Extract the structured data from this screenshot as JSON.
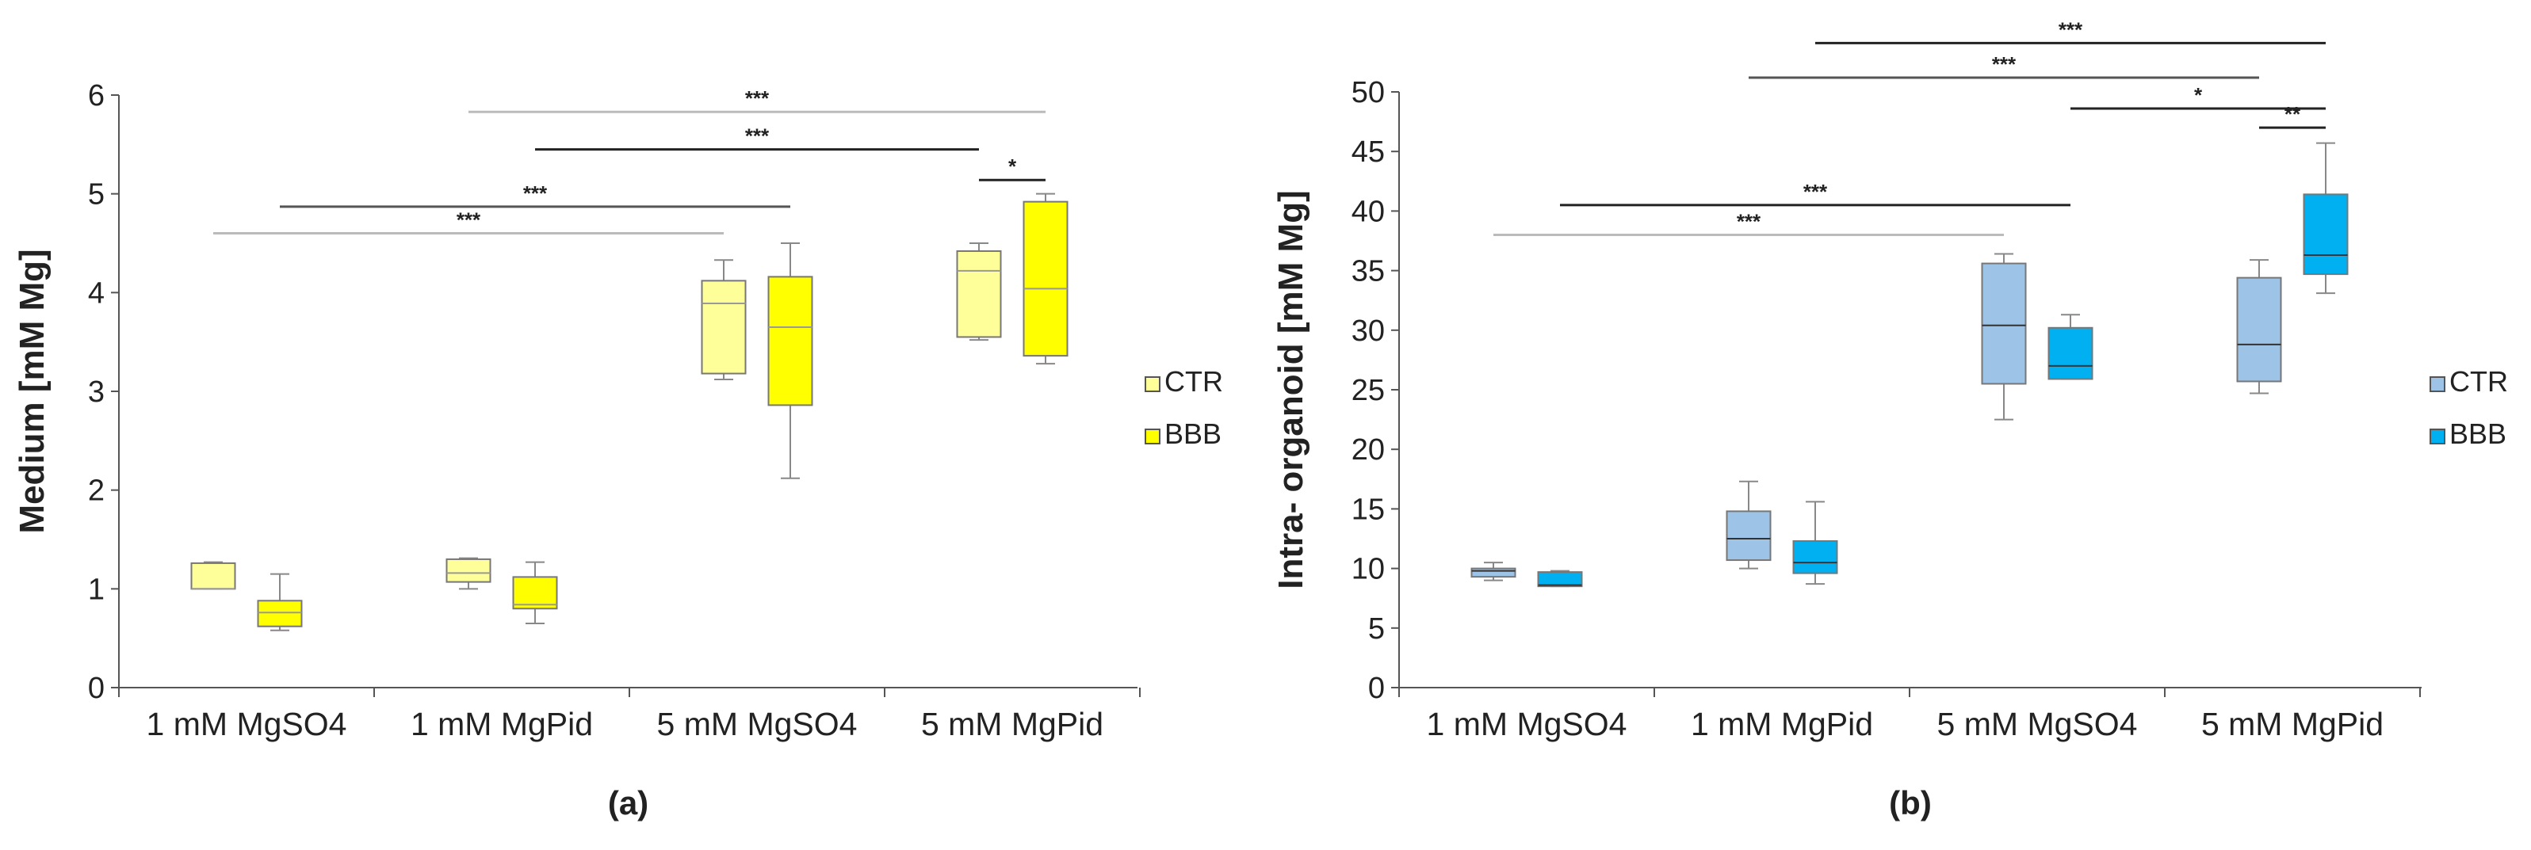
{
  "chart_data": [
    {
      "type": "box",
      "panel_label": "(a)",
      "ylabel": "Medium [mM Mg]",
      "ylim": [
        0,
        6
      ],
      "yticks": [
        "0",
        "1",
        "2",
        "3",
        "4",
        "5",
        "6"
      ],
      "categories": [
        "1 mM MgSO4",
        "1 mM MgPid",
        "5 mM MgSO4",
        "5 mM MgPid"
      ],
      "legend": {
        "position": "right",
        "entries": [
          "CTR",
          "BBB"
        ]
      },
      "series": [
        {
          "name": "CTR",
          "color": "#ffff99",
          "boxes": [
            {
              "min": 1.0,
              "q1": 1.0,
              "median": 1.0,
              "q3": 1.26,
              "max": 1.27
            },
            {
              "min": 1.0,
              "q1": 1.07,
              "median": 1.16,
              "q3": 1.3,
              "max": 1.31
            },
            {
              "min": 3.12,
              "q1": 3.18,
              "median": 3.89,
              "q3": 4.12,
              "max": 4.33
            },
            {
              "min": 3.52,
              "q1": 3.55,
              "median": 4.22,
              "q3": 4.42,
              "max": 4.5
            }
          ]
        },
        {
          "name": "BBB",
          "color": "#ffff00",
          "boxes": [
            {
              "min": 0.58,
              "q1": 0.62,
              "median": 0.76,
              "q3": 0.88,
              "max": 1.15
            },
            {
              "min": 0.65,
              "q1": 0.8,
              "median": 0.84,
              "q3": 1.12,
              "max": 1.27
            },
            {
              "min": 2.12,
              "q1": 2.86,
              "median": 3.65,
              "q3": 4.16,
              "max": 4.5
            },
            {
              "min": 3.28,
              "q1": 3.36,
              "median": 4.04,
              "q3": 4.92,
              "max": 5.0
            }
          ]
        }
      ],
      "significance": [
        {
          "from": [
            0,
            "CTR"
          ],
          "to": [
            2,
            "CTR"
          ],
          "y": 4.6,
          "label": "***",
          "color": "#bbbbbb"
        },
        {
          "from": [
            0,
            "BBB"
          ],
          "to": [
            2,
            "BBB"
          ],
          "y": 4.87,
          "label": "***",
          "color": "#555555"
        },
        {
          "from": [
            1,
            "BBB"
          ],
          "to": [
            3,
            "CTR"
          ],
          "y": 5.45,
          "label": "***",
          "color": "#222222"
        },
        {
          "from": [
            1,
            "CTR"
          ],
          "to": [
            3,
            "BBB"
          ],
          "y": 5.83,
          "label": "***",
          "color": "#bbbbbb"
        },
        {
          "from": [
            3,
            "CTR"
          ],
          "to": [
            3,
            "BBB"
          ],
          "y": 5.14,
          "label": "*",
          "color": "#222222"
        }
      ]
    },
    {
      "type": "box",
      "panel_label": "(b)",
      "ylabel": "Intra- organoid [mM Mg]",
      "ylim": [
        0,
        50
      ],
      "yticks": [
        "0",
        "5",
        "10",
        "15",
        "20",
        "25",
        "30",
        "35",
        "40",
        "45",
        "50"
      ],
      "categories": [
        "1 mM MgSO4",
        "1 mM MgPid",
        "5 mM MgSO4",
        "5 mM MgPid"
      ],
      "legend": {
        "position": "right",
        "entries": [
          "CTR",
          "BBB"
        ]
      },
      "series": [
        {
          "name": "CTR",
          "color": "#9dc3e6",
          "boxes": [
            {
              "min": 9.0,
              "q1": 9.3,
              "median": 9.8,
              "q3": 10.0,
              "max": 10.5
            },
            {
              "min": 10.0,
              "q1": 10.7,
              "median": 12.5,
              "q3": 14.8,
              "max": 17.3
            },
            {
              "min": 22.5,
              "q1": 25.5,
              "median": 30.4,
              "q3": 35.6,
              "max": 36.4
            },
            {
              "min": 24.7,
              "q1": 25.7,
              "median": 28.8,
              "q3": 34.4,
              "max": 35.9
            }
          ]
        },
        {
          "name": "BBB",
          "color": "#00b0f0",
          "boxes": [
            {
              "min": 8.5,
              "q1": 8.5,
              "median": 8.6,
              "q3": 9.7,
              "max": 9.8
            },
            {
              "min": 8.7,
              "q1": 9.6,
              "median": 10.5,
              "q3": 12.3,
              "max": 15.6
            },
            {
              "min": 25.9,
              "q1": 25.9,
              "median": 27.0,
              "q3": 30.2,
              "max": 31.3
            },
            {
              "min": 33.1,
              "q1": 34.7,
              "median": 36.3,
              "q3": 41.4,
              "max": 45.7
            }
          ]
        }
      ],
      "significance": [
        {
          "from": [
            0,
            "CTR"
          ],
          "to": [
            2,
            "CTR"
          ],
          "y": 38,
          "label": "***",
          "color": "#bbbbbb"
        },
        {
          "from": [
            0,
            "BBB"
          ],
          "to": [
            2,
            "BBB"
          ],
          "y": 40.5,
          "label": "***",
          "color": "#222222"
        },
        {
          "from": [
            1,
            "CTR"
          ],
          "to": [
            3,
            "CTR"
          ],
          "y": 51.2,
          "label": "***",
          "color": "#555555"
        },
        {
          "from": [
            1,
            "BBB"
          ],
          "to": [
            3,
            "BBB"
          ],
          "y": 54.1,
          "label": "***",
          "color": "#222222"
        },
        {
          "from": [
            2,
            "BBB"
          ],
          "to": [
            3,
            "BBB"
          ],
          "y": 48.6,
          "label": "*",
          "color": "#222222"
        },
        {
          "from": [
            3,
            "CTR"
          ],
          "to": [
            3,
            "BBB"
          ],
          "y": 47.0,
          "label": "**",
          "color": "#222222"
        }
      ]
    }
  ]
}
